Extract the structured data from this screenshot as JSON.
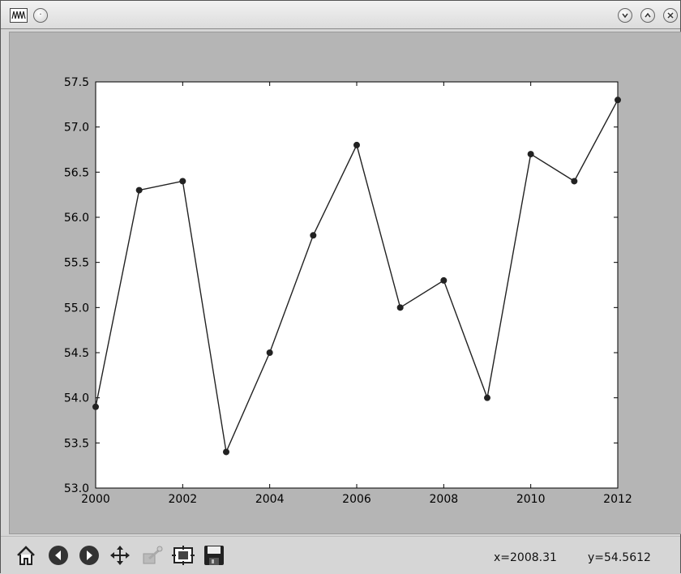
{
  "window": {
    "title": "",
    "buttons": [
      "minimize-icon",
      "maximize-icon",
      "close-icon"
    ]
  },
  "toolbar": {
    "tools": [
      "home-icon",
      "back-icon",
      "forward-icon",
      "pan-icon",
      "zoom-icon",
      "subplots-icon",
      "save-icon"
    ],
    "coord_x": "x=2008.31",
    "coord_y": "y=54.5612"
  },
  "chart_data": {
    "type": "line",
    "title": "",
    "xlabel": "",
    "ylabel": "",
    "x": [
      2000,
      2001,
      2002,
      2003,
      2004,
      2005,
      2006,
      2007,
      2008,
      2009,
      2010,
      2011,
      2012
    ],
    "series": [
      {
        "values": [
          53.9,
          56.3,
          56.4,
          53.4,
          54.5,
          55.8,
          56.8,
          55.0,
          55.3,
          54.0,
          56.7,
          56.4,
          57.3
        ]
      }
    ],
    "xlim": [
      2000,
      2012
    ],
    "ylim": [
      53.0,
      57.5
    ],
    "xticks": [
      "2000",
      "2002",
      "2004",
      "2006",
      "2008",
      "2010",
      "2012"
    ],
    "yticks": [
      "53.0",
      "53.5",
      "54.0",
      "54.5",
      "55.0",
      "55.5",
      "56.0",
      "56.5",
      "57.0",
      "57.5"
    ],
    "marker": "circle",
    "line_color": "#222222",
    "grid": false
  }
}
